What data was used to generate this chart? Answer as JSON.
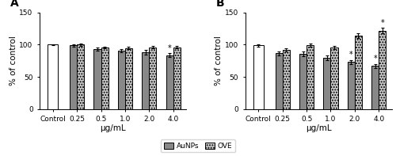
{
  "panel_A": {
    "label": "A",
    "categories": [
      "Control",
      "0.25",
      "0.5",
      "1.0",
      "2.0",
      "4.0"
    ],
    "aunps_values": [
      100,
      99,
      93,
      91,
      88,
      84
    ],
    "aunps_sem": [
      1.0,
      1.5,
      2.5,
      2.5,
      3.5,
      2.5
    ],
    "ove_values": [
      null,
      100,
      96,
      95,
      96,
      96
    ],
    "ove_sem": [
      null,
      1.5,
      1.5,
      2.0,
      2.0,
      2.0
    ],
    "aunps_star": [
      false,
      false,
      false,
      false,
      false,
      true
    ],
    "ove_star": [
      false,
      false,
      false,
      false,
      false,
      false
    ],
    "ylabel": "% of control",
    "xlabel": "μg/mL",
    "ylim": [
      0,
      150
    ],
    "yticks": [
      0,
      50,
      100,
      150
    ]
  },
  "panel_B": {
    "label": "B",
    "categories": [
      "Control",
      "0.25",
      "0.5",
      "1.0",
      "2.0",
      "4.0"
    ],
    "aunps_values": [
      99,
      87,
      86,
      80,
      73,
      67
    ],
    "aunps_sem": [
      1.5,
      3.0,
      4.0,
      3.5,
      3.5,
      3.0
    ],
    "ove_values": [
      null,
      92,
      99,
      96,
      114,
      122
    ],
    "ove_sem": [
      null,
      3.0,
      2.5,
      2.5,
      3.5,
      4.0
    ],
    "aunps_star": [
      false,
      false,
      false,
      false,
      true,
      true
    ],
    "ove_star": [
      false,
      false,
      false,
      false,
      false,
      true
    ],
    "ylabel": "% of control",
    "xlabel": "μg/mL",
    "ylim": [
      0,
      150
    ],
    "yticks": [
      0,
      50,
      100,
      150
    ]
  },
  "bar_width": 0.3,
  "aunps_color": "#888888",
  "aunps_edgecolor": "#000000",
  "ove_hatch": ".....",
  "ove_facecolor": "#cccccc",
  "ove_edgecolor": "#000000",
  "control_color": "#ffffff",
  "control_edgecolor": "#000000",
  "legend_labels": [
    "AuNPs",
    "OVE"
  ],
  "star_fontsize": 7,
  "tick_fontsize": 6.5,
  "axis_label_fontsize": 7.5
}
